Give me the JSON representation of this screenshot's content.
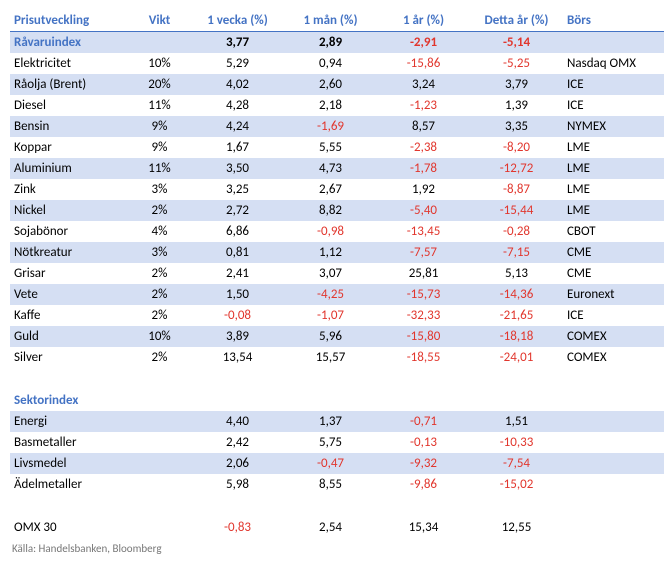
{
  "colors": {
    "header": "#4473c4",
    "row_even": "#d5dff3",
    "row_odd": "#ffffff",
    "neg": "#e1362d",
    "pos": "#000000"
  },
  "columns": [
    "Prisutveckling",
    "Vikt",
    "1 vecka (%)",
    "1 mån (%)",
    "1 år (%)",
    "Detta år (%)",
    "Börs"
  ],
  "rows": [
    {
      "kind": "header",
      "name": "Råvaruindex",
      "vikt": "",
      "v": [
        [
          "3,77",
          0
        ],
        [
          "2,89",
          0
        ],
        [
          "-2,91",
          1
        ],
        [
          "-5,14",
          1
        ]
      ],
      "bors": "",
      "cls": "even"
    },
    {
      "kind": "data",
      "name": "Elektricitet",
      "vikt": "10%",
      "v": [
        [
          "5,29",
          0
        ],
        [
          "0,94",
          0
        ],
        [
          "-15,86",
          1
        ],
        [
          "-5,25",
          1
        ]
      ],
      "bors": "Nasdaq OMX",
      "cls": "odd"
    },
    {
      "kind": "data",
      "name": "Råolja (Brent)",
      "vikt": "20%",
      "v": [
        [
          "4,02",
          0
        ],
        [
          "2,60",
          0
        ],
        [
          "3,24",
          0
        ],
        [
          "3,79",
          0
        ]
      ],
      "bors": "ICE",
      "cls": "even"
    },
    {
      "kind": "data",
      "name": "Diesel",
      "vikt": "11%",
      "v": [
        [
          "4,28",
          0
        ],
        [
          "2,18",
          0
        ],
        [
          "-1,23",
          1
        ],
        [
          "1,39",
          0
        ]
      ],
      "bors": "ICE",
      "cls": "odd"
    },
    {
      "kind": "data",
      "name": "Bensin",
      "vikt": "9%",
      "v": [
        [
          "4,24",
          0
        ],
        [
          "-1,69",
          1
        ],
        [
          "8,57",
          0
        ],
        [
          "3,35",
          0
        ]
      ],
      "bors": "NYMEX",
      "cls": "even"
    },
    {
      "kind": "data",
      "name": "Koppar",
      "vikt": "9%",
      "v": [
        [
          "1,67",
          0
        ],
        [
          "5,55",
          0
        ],
        [
          "-2,38",
          1
        ],
        [
          "-8,20",
          1
        ]
      ],
      "bors": "LME",
      "cls": "odd"
    },
    {
      "kind": "data",
      "name": "Aluminium",
      "vikt": "11%",
      "v": [
        [
          "3,50",
          0
        ],
        [
          "4,73",
          0
        ],
        [
          "-1,78",
          1
        ],
        [
          "-12,72",
          1
        ]
      ],
      "bors": "LME",
      "cls": "even"
    },
    {
      "kind": "data",
      "name": "Zink",
      "vikt": "3%",
      "v": [
        [
          "3,25",
          0
        ],
        [
          "2,67",
          0
        ],
        [
          "1,92",
          0
        ],
        [
          "-8,87",
          1
        ]
      ],
      "bors": "LME",
      "cls": "odd"
    },
    {
      "kind": "data",
      "name": "Nickel",
      "vikt": "2%",
      "v": [
        [
          "2,72",
          0
        ],
        [
          "8,82",
          0
        ],
        [
          "-5,40",
          1
        ],
        [
          "-15,44",
          1
        ]
      ],
      "bors": "LME",
      "cls": "even"
    },
    {
      "kind": "data",
      "name": "Sojabönor",
      "vikt": "4%",
      "v": [
        [
          "6,86",
          0
        ],
        [
          "-0,98",
          1
        ],
        [
          "-13,45",
          1
        ],
        [
          "-0,28",
          1
        ]
      ],
      "bors": "CBOT",
      "cls": "odd"
    },
    {
      "kind": "data",
      "name": "Nötkreatur",
      "vikt": "3%",
      "v": [
        [
          "0,81",
          0
        ],
        [
          "1,12",
          0
        ],
        [
          "-7,57",
          1
        ],
        [
          "-7,15",
          1
        ]
      ],
      "bors": "CME",
      "cls": "even"
    },
    {
      "kind": "data",
      "name": "Grisar",
      "vikt": "2%",
      "v": [
        [
          "2,41",
          0
        ],
        [
          "3,07",
          0
        ],
        [
          "25,81",
          0
        ],
        [
          "5,13",
          0
        ]
      ],
      "bors": "CME",
      "cls": "odd"
    },
    {
      "kind": "data",
      "name": "Vete",
      "vikt": "2%",
      "v": [
        [
          "1,50",
          0
        ],
        [
          "-4,25",
          1
        ],
        [
          "-15,73",
          1
        ],
        [
          "-14,36",
          1
        ]
      ],
      "bors": "Euronext",
      "cls": "even"
    },
    {
      "kind": "data",
      "name": "Kaffe",
      "vikt": "2%",
      "v": [
        [
          "-0,08",
          1
        ],
        [
          "-1,07",
          1
        ],
        [
          "-32,33",
          1
        ],
        [
          "-21,65",
          1
        ]
      ],
      "bors": "ICE",
      "cls": "odd"
    },
    {
      "kind": "data",
      "name": "Guld",
      "vikt": "10%",
      "v": [
        [
          "3,89",
          0
        ],
        [
          "5,96",
          0
        ],
        [
          "-15,80",
          1
        ],
        [
          "-18,18",
          1
        ]
      ],
      "bors": "COMEX",
      "cls": "even"
    },
    {
      "kind": "data",
      "name": "Silver",
      "vikt": "2%",
      "v": [
        [
          "13,54",
          0
        ],
        [
          "15,57",
          0
        ],
        [
          "-18,55",
          1
        ],
        [
          "-24,01",
          1
        ]
      ],
      "bors": "COMEX",
      "cls": "odd"
    },
    {
      "kind": "blank",
      "cls": "blank"
    },
    {
      "kind": "sektor",
      "name": "Sektorindex",
      "vikt": "",
      "v": [
        [
          "",
          0
        ],
        [
          "",
          0
        ],
        [
          "",
          0
        ],
        [
          "",
          0
        ]
      ],
      "bors": "",
      "cls": "odd"
    },
    {
      "kind": "data",
      "name": "Energi",
      "vikt": "",
      "v": [
        [
          "4,40",
          0
        ],
        [
          "1,37",
          0
        ],
        [
          "-0,71",
          1
        ],
        [
          "1,51",
          0
        ]
      ],
      "bors": "",
      "cls": "even"
    },
    {
      "kind": "data",
      "name": "Basmetaller",
      "vikt": "",
      "v": [
        [
          "2,42",
          0
        ],
        [
          "5,75",
          0
        ],
        [
          "-0,13",
          1
        ],
        [
          "-10,33",
          1
        ]
      ],
      "bors": "",
      "cls": "odd"
    },
    {
      "kind": "data",
      "name": "Livsmedel",
      "vikt": "",
      "v": [
        [
          "2,06",
          0
        ],
        [
          "-0,47",
          1
        ],
        [
          "-9,32",
          1
        ],
        [
          "-7,54",
          1
        ]
      ],
      "bors": "",
      "cls": "even"
    },
    {
      "kind": "data",
      "name": "Ädelmetaller",
      "vikt": "",
      "v": [
        [
          "5,98",
          0
        ],
        [
          "8,55",
          0
        ],
        [
          "-9,86",
          1
        ],
        [
          "-15,02",
          1
        ]
      ],
      "bors": "",
      "cls": "odd"
    },
    {
      "kind": "blank",
      "cls": "blank"
    },
    {
      "kind": "data",
      "name": "OMX 30",
      "vikt": "",
      "v": [
        [
          "-0,83",
          1
        ],
        [
          "2,54",
          0
        ],
        [
          "15,34",
          0
        ],
        [
          "12,55",
          0
        ]
      ],
      "bors": "",
      "cls": "odd"
    }
  ],
  "footer": "Källa: Handelsbanken, Bloomberg"
}
